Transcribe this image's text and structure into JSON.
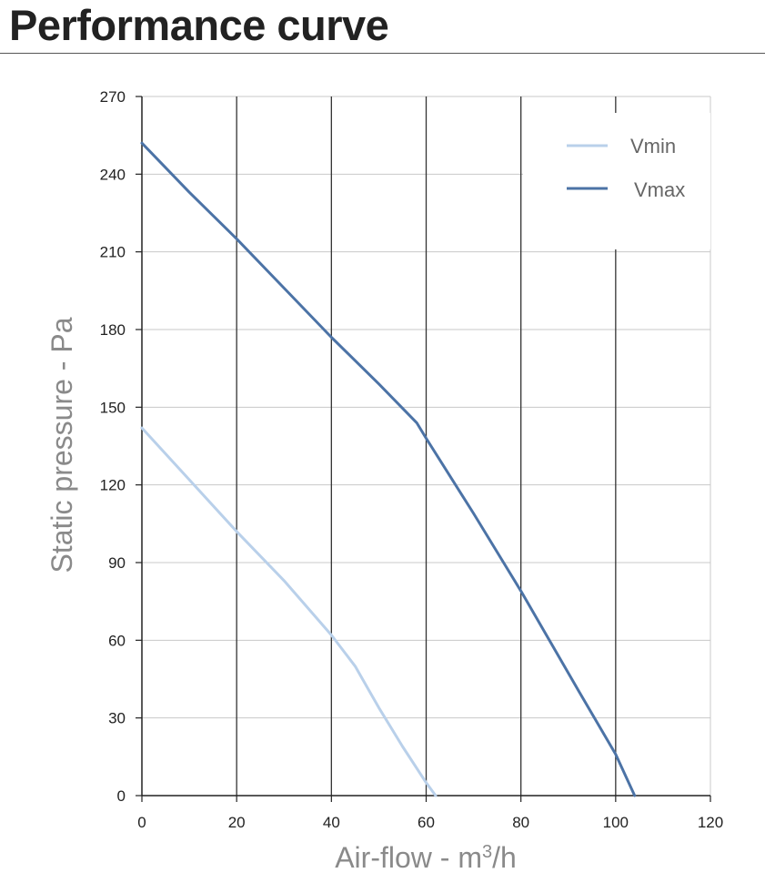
{
  "chart_data": {
    "type": "line",
    "title": "Performance curve",
    "xlabel": "Air-flow - m",
    "xlabel_sup": "3",
    "xlabel_suffix": "/h",
    "ylabel": "Static pressure - Pa",
    "xlim": [
      0,
      120
    ],
    "ylim": [
      0,
      270
    ],
    "x_ticks": [
      0,
      20,
      40,
      60,
      80,
      100,
      120
    ],
    "y_ticks": [
      0,
      30,
      60,
      90,
      120,
      150,
      180,
      210,
      240,
      270
    ],
    "grid": true,
    "legend_position": "top-right",
    "series": [
      {
        "name": "Vmin",
        "color": "#b9d0ea",
        "points": [
          [
            0,
            142
          ],
          [
            10,
            122
          ],
          [
            20,
            102
          ],
          [
            30,
            83
          ],
          [
            40,
            62
          ],
          [
            45,
            50
          ],
          [
            50,
            34
          ],
          [
            55,
            19
          ],
          [
            60,
            5
          ],
          [
            62,
            0
          ]
        ]
      },
      {
        "name": "Vmax",
        "color": "#4c73a6",
        "points": [
          [
            0,
            252
          ],
          [
            10,
            233
          ],
          [
            20,
            215
          ],
          [
            30,
            196
          ],
          [
            40,
            177
          ],
          [
            50,
            159
          ],
          [
            58,
            144
          ],
          [
            60,
            138
          ],
          [
            70,
            109
          ],
          [
            80,
            79
          ],
          [
            92,
            41
          ],
          [
            100,
            16
          ],
          [
            104,
            0
          ]
        ]
      }
    ]
  },
  "colors": {
    "grid": "#c8c8c8",
    "grid_major": "#333333",
    "axis": "#222222"
  }
}
